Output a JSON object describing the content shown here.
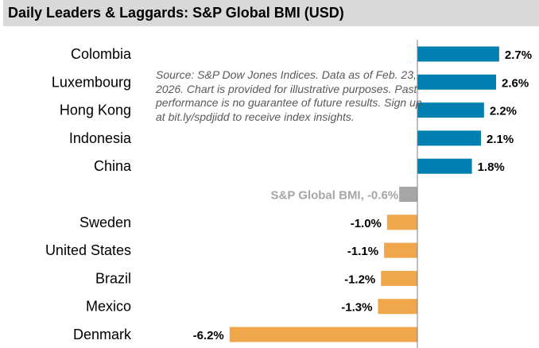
{
  "chart_data": {
    "type": "bar",
    "orientation": "horizontal",
    "title": "Daily Leaders & Laggards: S&P Global BMI (USD)",
    "categories": [
      "Colombia",
      "Luxembourg",
      "Hong Kong",
      "Indonesia",
      "China",
      "S&P Global BMI",
      "Sweden",
      "United States",
      "Brazil",
      "Mexico",
      "Denmark"
    ],
    "values": [
      2.7,
      2.6,
      2.2,
      2.1,
      1.8,
      -0.6,
      -1.0,
      -1.1,
      -1.2,
      -1.3,
      -6.2
    ],
    "data_labels": [
      "2.7%",
      "2.6%",
      "2.2%",
      "2.1%",
      "1.8%",
      "S&P Global BMI, -0.6%",
      "-1.0%",
      "-1.1%",
      "-1.2%",
      "-1.3%",
      "-6.2%"
    ],
    "axis_labels": [
      "Colombia",
      "Luxembourg",
      "Hong Kong",
      "Indonesia",
      "China",
      "",
      "Sweden",
      "United States",
      "Brazil",
      "Mexico",
      "Denmark"
    ],
    "xlim": [
      -6.2,
      2.7
    ],
    "grid": false,
    "colors": {
      "positive": "#0080b0",
      "benchmark": "#a6a6a6",
      "negative": "#f0a64a",
      "benchmark_label": "#a6a6a6",
      "axis": "#808080"
    },
    "note": "Source: S&P Dow Jones Indices. Data as of Feb. 23, 2026. Chart is provided for illustrative purposes. Past performance is no guarantee of future results. Sign up at bit.ly/spdjidd to receive index insights."
  }
}
